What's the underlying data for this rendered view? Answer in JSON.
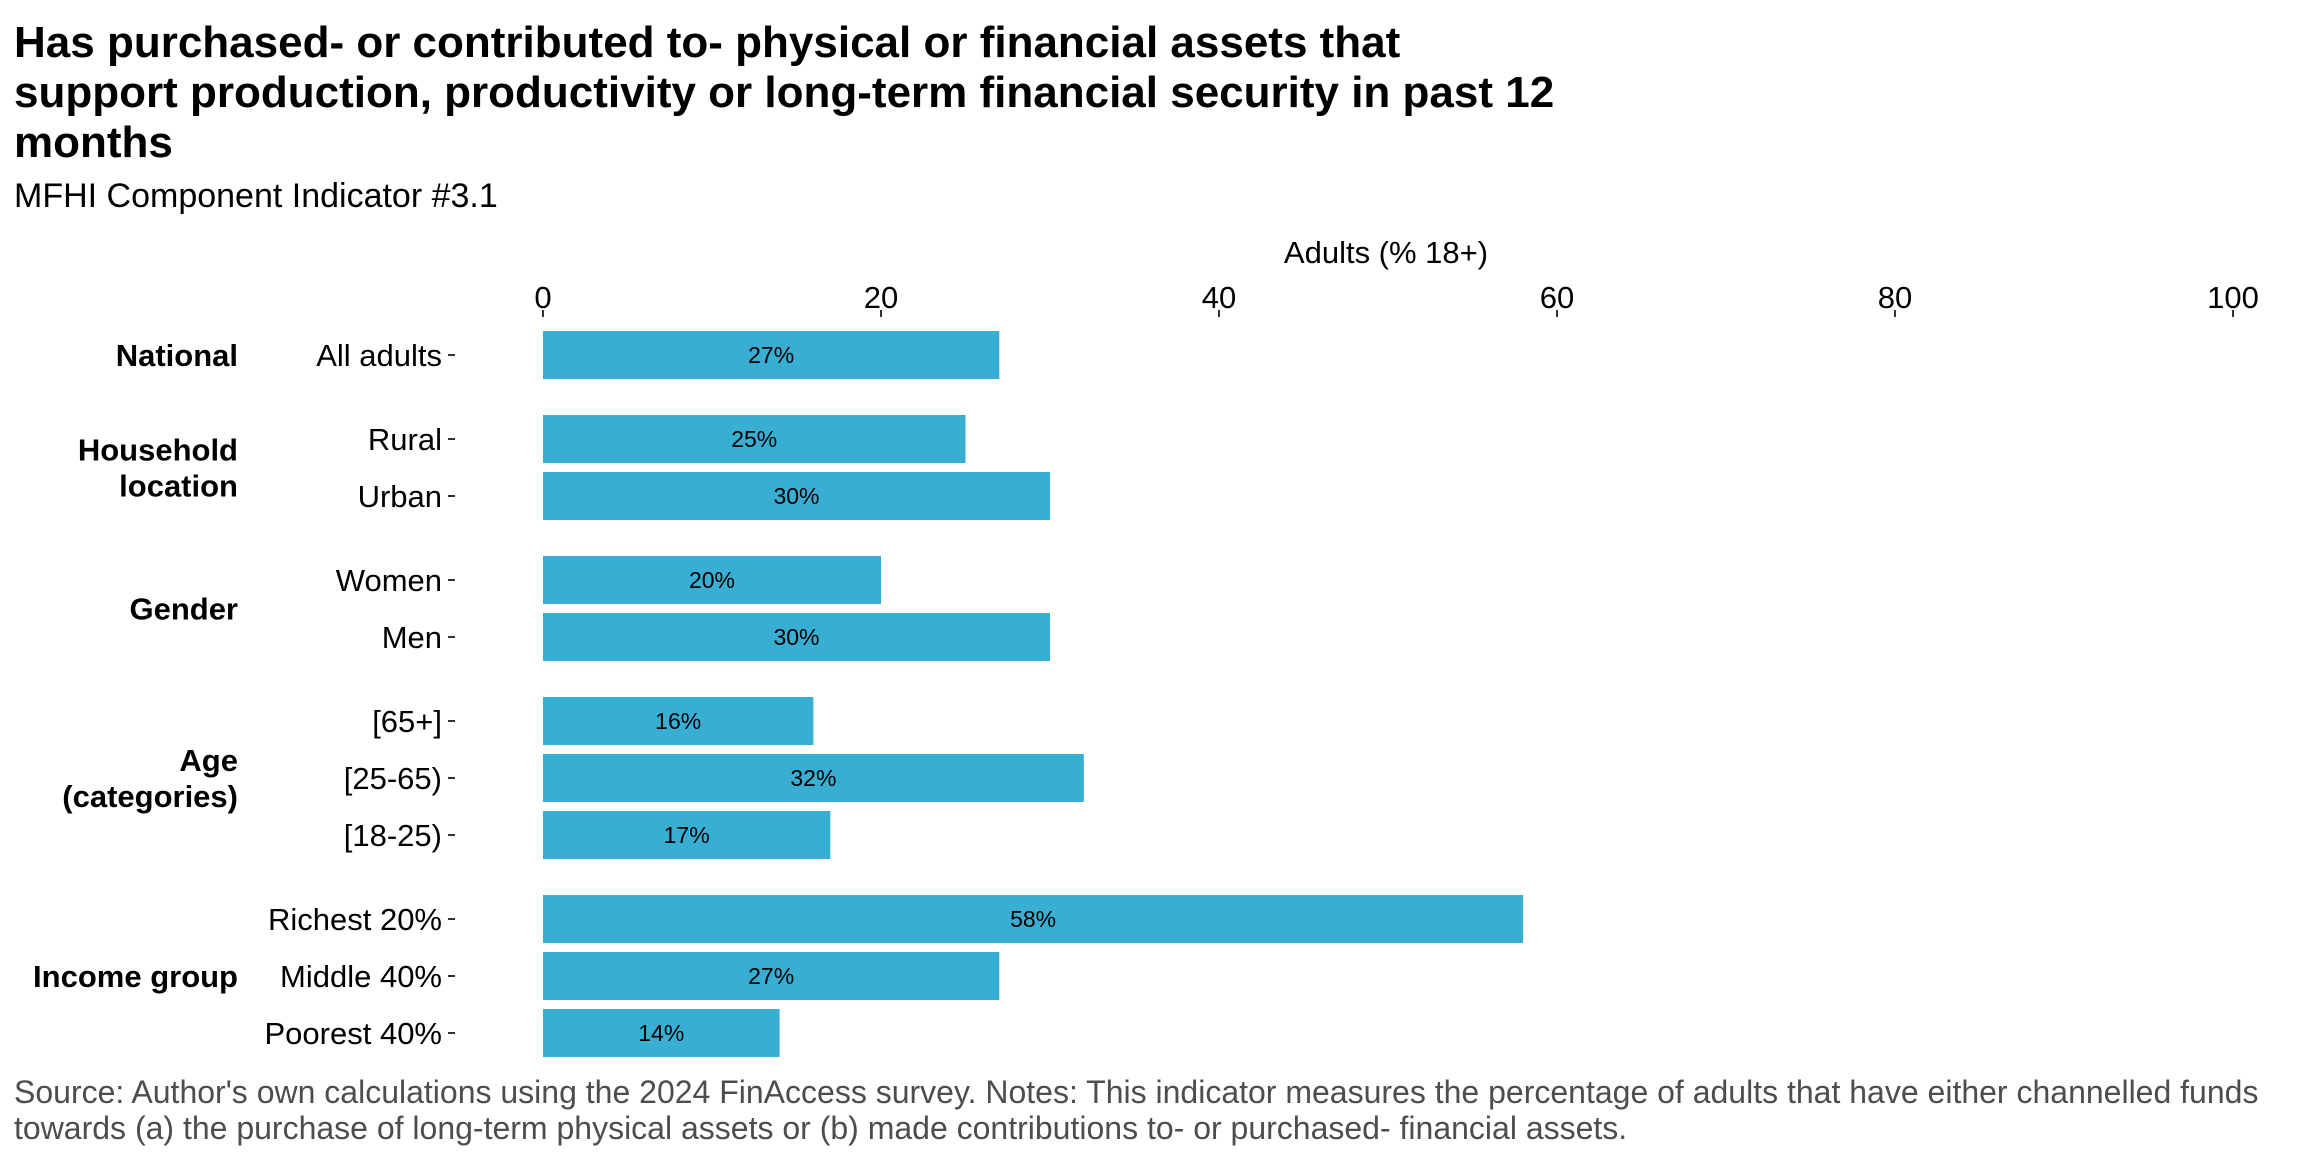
{
  "chart_data": {
    "type": "bar",
    "orientation": "horizontal",
    "title": "Has purchased- or contributed to- physical or financial assets that support production, productivity or long-term financial security in past 12 months",
    "subtitle": "MFHI Component Indicator #3.1",
    "xlabel": "Adults (% 18+)",
    "xlim": [
      0,
      100
    ],
    "xticks": [
      "0",
      "20",
      "40",
      "60",
      "80",
      "100"
    ],
    "bar_color": "#38aed3",
    "groups": [
      {
        "label": "National",
        "categories": [
          "All adults"
        ],
        "values": [
          27
        ],
        "value_labels": [
          "27%"
        ]
      },
      {
        "label": "Household location",
        "label_lines": [
          "Household",
          "location"
        ],
        "categories": [
          "Rural",
          "Urban"
        ],
        "values": [
          25,
          30
        ],
        "value_labels": [
          "25%",
          "30%"
        ]
      },
      {
        "label": "Gender",
        "categories": [
          "Women",
          "Men"
        ],
        "values": [
          20,
          30
        ],
        "value_labels": [
          "20%",
          "30%"
        ]
      },
      {
        "label": "Age (categories)",
        "label_lines": [
          "Age",
          "(categories)"
        ],
        "categories": [
          "[65+]",
          "[25-65)",
          "[18-25)"
        ],
        "values": [
          16,
          32,
          17
        ],
        "value_labels": [
          "16%",
          "32%",
          "17%"
        ]
      },
      {
        "label": "Income group",
        "categories": [
          "Richest 20%",
          "Middle 40%",
          "Poorest 40%"
        ],
        "values": [
          58,
          27,
          14
        ],
        "value_labels": [
          "58%",
          "27%",
          "14%"
        ]
      }
    ],
    "grid": false,
    "legend": "none"
  },
  "caption": "Source: Author's own calculations using the 2024 FinAccess survey. Notes: This indicator measures the percentage of adults that have either channelled funds towards (a) the purchase of long-term physical assets or (b) made contributions to- or purchased- financial assets."
}
